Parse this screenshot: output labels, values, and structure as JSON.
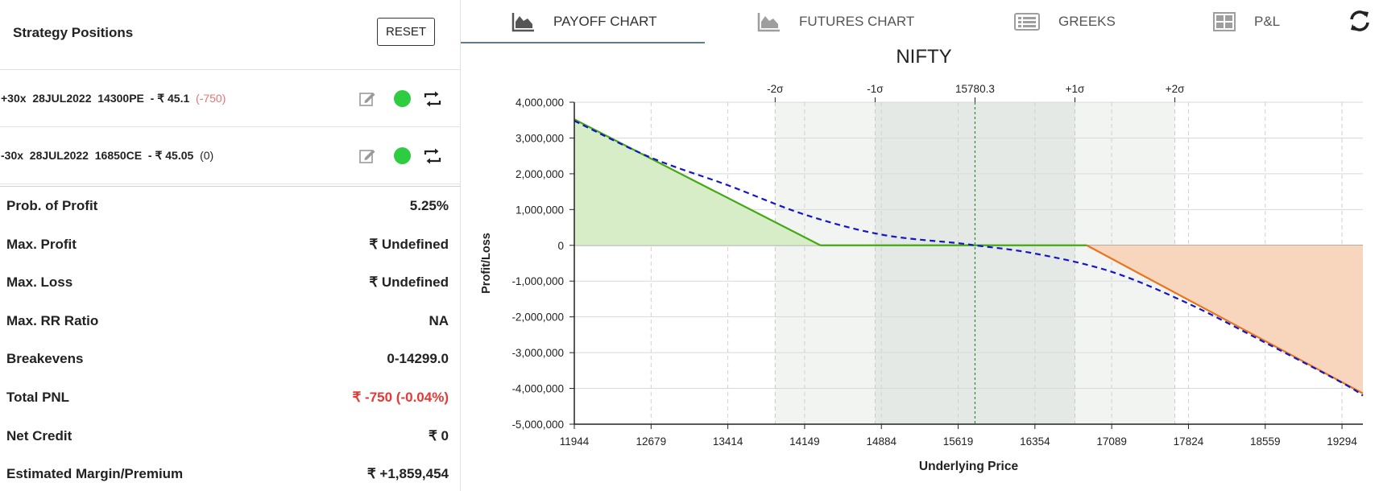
{
  "left_panel": {
    "title": "Strategy Positions",
    "reset_label": "RESET",
    "positions": [
      {
        "text": "+30x  28JUL2022  14300PE  - ₹ 45.1",
        "pnl": "(-750)",
        "pnl_color": "#e57373",
        "status_color": "#2ecc40"
      },
      {
        "text": "-30x  28JUL2022  16850CE  - ₹ 45.05",
        "pnl": "(0)",
        "pnl_color": "#222222",
        "status_color": "#2ecc40"
      }
    ],
    "stats": [
      {
        "label": "Prob. of Profit",
        "value": "5.25%",
        "color": "#222222"
      },
      {
        "label": "Max. Profit",
        "value": "₹ Undefined",
        "color": "#222222"
      },
      {
        "label": "Max. Loss",
        "value": "₹ Undefined",
        "color": "#222222"
      },
      {
        "label": "Max. RR Ratio",
        "value": "NA",
        "color": "#222222"
      },
      {
        "label": "Breakevens",
        "value": "0-14299.0",
        "color": "#222222"
      },
      {
        "label": "Total PNL",
        "value": "₹ -750 (-0.04%)",
        "color": "#e53935"
      },
      {
        "label": "Net Credit",
        "value": "₹ 0",
        "color": "#222222"
      },
      {
        "label": "Estimated Margin/Premium",
        "value": "₹ +1,859,454",
        "color": "#222222"
      }
    ]
  },
  "tabs": [
    {
      "label": "PAYOFF CHART",
      "icon": "area-chart-icon",
      "active": true
    },
    {
      "label": "FUTURES CHART",
      "icon": "area-chart-icon",
      "active": false
    },
    {
      "label": "GREEKS",
      "icon": "list-icon",
      "active": false
    },
    {
      "label": "P&L",
      "icon": "table-icon",
      "active": false
    }
  ],
  "refresh_icon": "refresh-icon",
  "chart_data": {
    "type": "line",
    "title": "NIFTY",
    "xlabel": "Underlying Price",
    "ylabel": "Profit/Loss",
    "xlim": [
      11944,
      19494
    ],
    "ylim": [
      -5000000,
      4000000
    ],
    "x_ticks": [
      11944,
      12679,
      13414,
      14149,
      14884,
      15619,
      16354,
      17089,
      17824,
      18559,
      19294
    ],
    "y_ticks": [
      {
        "value": 4000000,
        "label": "4,000,000"
      },
      {
        "value": 3000000,
        "label": "3,000,000"
      },
      {
        "value": 2000000,
        "label": "2,000,000"
      },
      {
        "value": 1000000,
        "label": "1,000,000"
      },
      {
        "value": 0,
        "label": "0"
      },
      {
        "value": -1000000,
        "label": "-1,000,000"
      },
      {
        "value": -2000000,
        "label": "-2,000,000"
      },
      {
        "value": -3000000,
        "label": "-3,000,000"
      },
      {
        "value": -4000000,
        "label": "-4,000,000"
      },
      {
        "value": -5000000,
        "label": "-5,000,000"
      }
    ],
    "spot": {
      "value": 15780.3,
      "label": "15780.3"
    },
    "sigma_levels": [
      {
        "label": "-2σ",
        "value": 13867
      },
      {
        "label": "-1σ",
        "value": 14824
      },
      {
        "label": "+1σ",
        "value": 16737
      },
      {
        "label": "+2σ",
        "value": 17694
      }
    ],
    "series": [
      {
        "style": "expiry",
        "points": [
          [
            11944,
            3521000
          ],
          [
            14300,
            0
          ],
          [
            16850,
            0
          ],
          [
            19494,
            -4140000
          ]
        ]
      },
      {
        "style": "target",
        "points": [
          [
            11944,
            3480000
          ],
          [
            12679,
            2450000
          ],
          [
            13414,
            1680000
          ],
          [
            14149,
            860000
          ],
          [
            14884,
            300000
          ],
          [
            15619,
            60000
          ],
          [
            15780,
            0
          ],
          [
            16354,
            -230000
          ],
          [
            17089,
            -740000
          ],
          [
            17824,
            -1630000
          ],
          [
            18559,
            -2720000
          ],
          [
            19294,
            -3840000
          ],
          [
            19494,
            -4200000
          ]
        ]
      }
    ],
    "colors": {
      "profit_fill": "#d6edc8",
      "loss_fill": "#f8d6bd",
      "profit_line": "#45a812",
      "loss_line": "#e8741e",
      "target_line": "#1515c8",
      "spot_line": "#2e8b2e",
      "sigma1_band": "#e4e9e5",
      "sigma2_band": "#f2f4f2"
    }
  }
}
